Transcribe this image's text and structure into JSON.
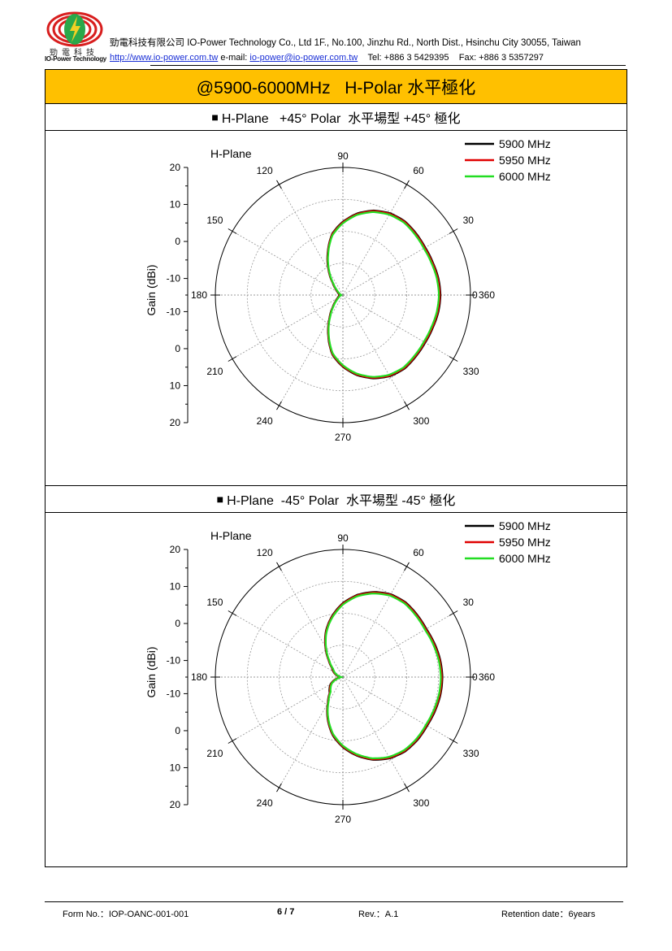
{
  "header": {
    "logo_cn": "勁電科技",
    "logo_en": "IO-Power Technology",
    "company_line": "勁電科技有限公司 IO-Power Technology Co., Ltd 1F., No.100, Jinzhu Rd., North Dist., Hsinchu City 30055, Taiwan",
    "website": "http://www.io-power.com.tw",
    "email_label": "e-mail:",
    "email": "io-power@io-power.com.tw",
    "tel": "Tel: +886 3 5429395",
    "fax": "Fax: +886 3 5357297",
    "colors": {
      "logo_red": "#d81e1e",
      "logo_yellow": "#f2d024",
      "logo_green": "#2aa84a",
      "link": "#1a2fd6"
    }
  },
  "title": "@5900-6000MHz   H-Polar 水平極化",
  "title_bg": "#ffc000",
  "sections": [
    {
      "heading_marker": "■",
      "heading": "H-Plane   +45° Polar  水平場型 +45° 極化"
    },
    {
      "heading_marker": "■",
      "heading": "H-Plane  -45° Polar  水平場型 -45° 極化"
    }
  ],
  "chart_data": [
    {
      "type": "polar",
      "title": "H-Plane",
      "ylabel": "Gain (dBi)",
      "radial_range": [
        -20,
        20
      ],
      "radial_ticks": [
        "20",
        "10",
        "0",
        "-10",
        "-10",
        "0",
        "10",
        "20"
      ],
      "angle_labels": [
        "0",
        "30",
        "60",
        "90",
        "120",
        "150",
        "180",
        "210",
        "240",
        "270",
        "300",
        "330",
        "360"
      ],
      "grid": true,
      "legend_position": "top-right",
      "angles_deg": [
        0,
        10,
        20,
        30,
        40,
        50,
        60,
        70,
        80,
        90,
        100,
        110,
        120,
        130,
        140,
        150,
        160,
        170,
        180,
        190,
        200,
        210,
        220,
        230,
        240,
        250,
        260,
        270,
        280,
        290,
        300,
        310,
        320,
        330,
        340,
        350
      ],
      "series": [
        {
          "name": "5900 MHz",
          "color": "#000000",
          "values": [
            10.6,
            10.4,
            10.0,
            9.8,
            10.0,
            10.2,
            9.6,
            8.2,
            6.0,
            3.0,
            -0.5,
            -6.0,
            -11.0,
            -15.0,
            -17.0,
            -18.0,
            -18.5,
            -18.8,
            -19.0,
            -18.8,
            -18.5,
            -18.0,
            -17.0,
            -15.0,
            -11.5,
            -6.5,
            -1.0,
            2.5,
            5.5,
            7.8,
            9.4,
            10.1,
            9.9,
            9.8,
            10.0,
            10.4
          ]
        },
        {
          "name": "5950 MHz",
          "color": "#e00000",
          "values": [
            10.4,
            10.2,
            9.8,
            9.6,
            9.8,
            10.0,
            9.4,
            8.0,
            5.8,
            2.8,
            -0.7,
            -6.2,
            -11.2,
            -15.2,
            -17.2,
            -18.2,
            -18.7,
            -19.0,
            -19.2,
            -19.0,
            -18.7,
            -18.2,
            -17.2,
            -15.2,
            -11.7,
            -6.7,
            -1.2,
            2.3,
            5.3,
            7.6,
            9.2,
            9.9,
            9.7,
            9.6,
            9.8,
            10.2
          ]
        },
        {
          "name": "6000 MHz",
          "color": "#22dd22",
          "values": [
            10.1,
            9.9,
            9.5,
            9.3,
            9.5,
            9.7,
            9.1,
            7.7,
            5.5,
            2.5,
            -1.0,
            -6.5,
            -11.5,
            -15.5,
            -17.5,
            -18.5,
            -19.0,
            -19.3,
            -19.5,
            -19.3,
            -19.0,
            -18.5,
            -17.5,
            -15.5,
            -12.0,
            -7.0,
            -1.5,
            2.0,
            5.0,
            7.3,
            8.9,
            9.6,
            9.4,
            9.3,
            9.5,
            9.9
          ]
        }
      ]
    },
    {
      "type": "polar",
      "title": "H-Plane",
      "ylabel": "Gain (dBi)",
      "radial_range": [
        -20,
        20
      ],
      "radial_ticks": [
        "20",
        "10",
        "0",
        "-10",
        "-10",
        "0",
        "10",
        "20"
      ],
      "angle_labels": [
        "0",
        "30",
        "60",
        "90",
        "120",
        "150",
        "180",
        "210",
        "240",
        "270",
        "300",
        "330",
        "360"
      ],
      "grid": true,
      "legend_position": "top-right",
      "angles_deg": [
        0,
        10,
        20,
        30,
        40,
        50,
        60,
        70,
        80,
        90,
        100,
        110,
        120,
        130,
        140,
        150,
        160,
        170,
        180,
        190,
        200,
        210,
        220,
        230,
        240,
        250,
        260,
        270,
        280,
        290,
        300,
        310,
        320,
        330,
        340,
        350
      ],
      "series": [
        {
          "name": "5900 MHz",
          "color": "#000000",
          "values": [
            11.2,
            11.0,
            10.6,
            10.2,
            10.4,
            10.6,
            10.0,
            8.4,
            6.2,
            3.2,
            -0.5,
            -4.5,
            -9.0,
            -13.0,
            -15.5,
            -16.5,
            -17.5,
            -18.5,
            -19.0,
            -18.5,
            -17.0,
            -15.5,
            -14.5,
            -13.5,
            -10.5,
            -6.0,
            -1.5,
            2.0,
            5.0,
            7.6,
            9.4,
            10.4,
            10.6,
            10.5,
            10.8,
            11.1
          ]
        },
        {
          "name": "5950 MHz",
          "color": "#e00000",
          "values": [
            11.0,
            10.8,
            10.4,
            10.0,
            10.2,
            10.4,
            9.8,
            8.2,
            6.0,
            3.0,
            -0.7,
            -4.7,
            -9.2,
            -13.2,
            -15.7,
            -16.7,
            -17.7,
            -18.7,
            -19.2,
            -18.7,
            -17.2,
            -15.7,
            -14.7,
            -13.7,
            -10.7,
            -6.2,
            -1.7,
            1.8,
            4.8,
            7.4,
            9.2,
            10.2,
            10.4,
            10.3,
            10.6,
            10.9
          ]
        },
        {
          "name": "6000 MHz",
          "color": "#22dd22",
          "values": [
            10.7,
            10.5,
            10.1,
            9.7,
            9.9,
            10.1,
            9.5,
            7.9,
            5.7,
            2.7,
            -1.0,
            -5.0,
            -9.5,
            -13.5,
            -16.0,
            -17.0,
            -18.0,
            -19.0,
            -19.5,
            -19.0,
            -17.5,
            -16.0,
            -15.0,
            -14.0,
            -11.0,
            -6.5,
            -2.0,
            1.5,
            4.5,
            7.1,
            8.9,
            9.9,
            10.1,
            10.0,
            10.3,
            10.6
          ]
        }
      ]
    }
  ],
  "footer": {
    "form_no": "Form No.：IOP-OANC-001-001",
    "page": "6 / 7",
    "rev": "Rev.：A.1",
    "retention": "Retention date：6years"
  }
}
